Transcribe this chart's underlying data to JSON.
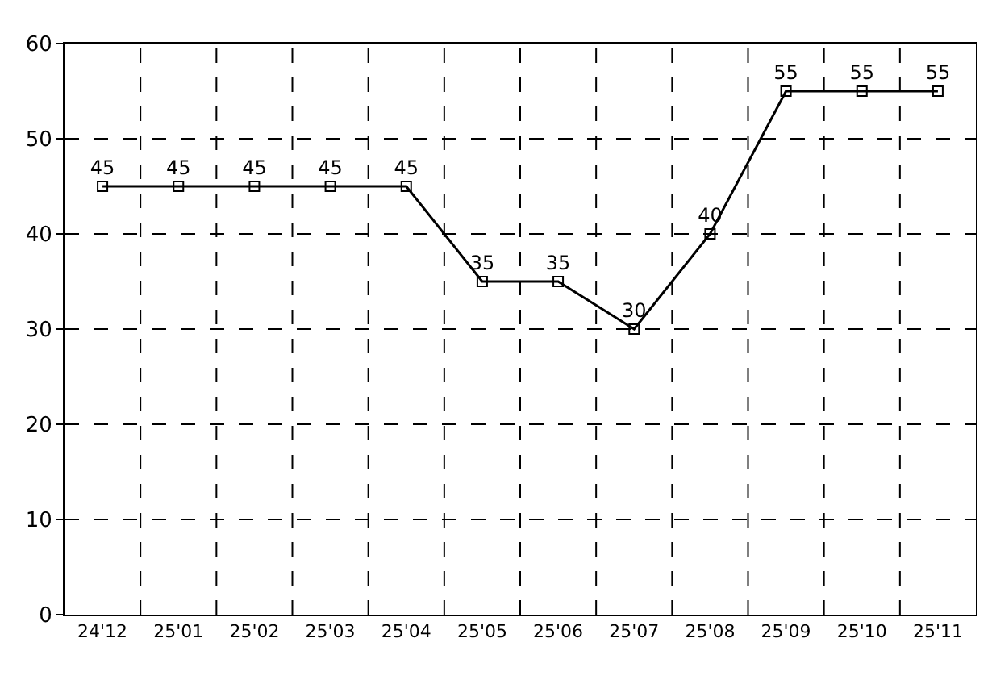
{
  "chart_data": {
    "type": "line",
    "categories": [
      "24'12",
      "25'01",
      "25'02",
      "25'03",
      "25'04",
      "25'05",
      "25'06",
      "25'07",
      "25'08",
      "25'09",
      "25'10",
      "25'11"
    ],
    "series": [
      {
        "color": "#000000",
        "values": [
          45,
          45,
          45,
          45,
          45,
          35,
          35,
          30,
          40,
          55,
          55,
          55
        ]
      }
    ],
    "ylim": [
      0,
      60
    ],
    "yticks": [
      0,
      10,
      20,
      30,
      40,
      50,
      60
    ],
    "grid": true,
    "marker": "square",
    "line_style": "solid",
    "data_labels": true,
    "legend": false
  }
}
